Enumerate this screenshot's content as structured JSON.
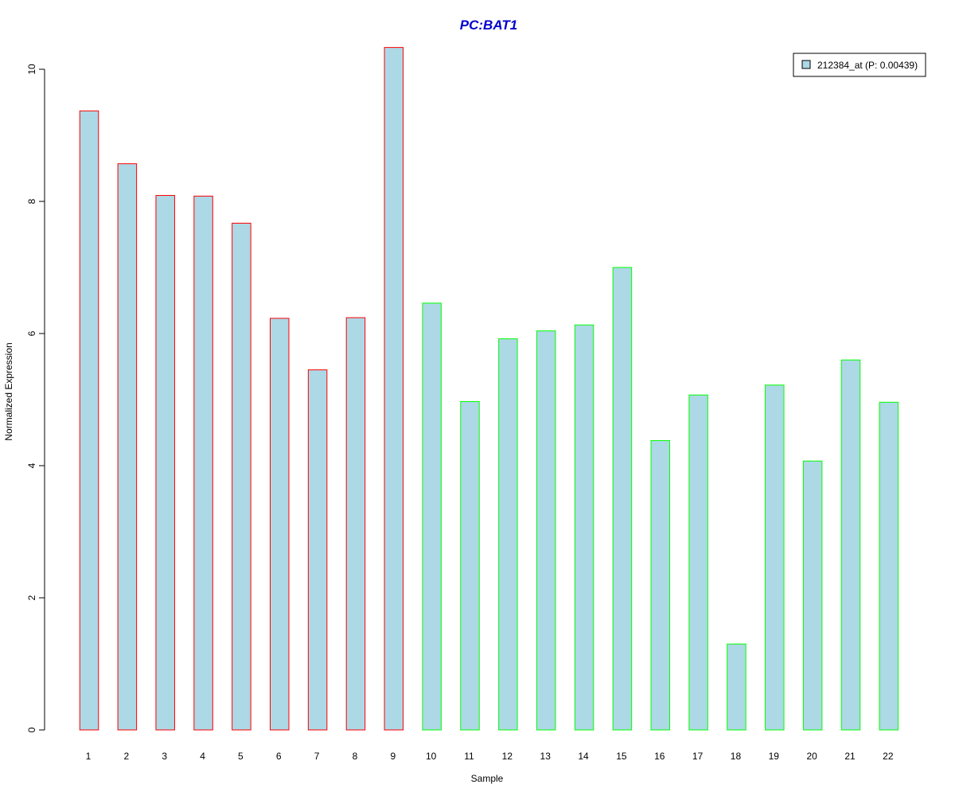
{
  "colors": {
    "bar_fill": "#add8e6",
    "group1_border": "#ff0000",
    "group2_border": "#00ff00",
    "title": "#0000cd",
    "axis": "#000000"
  },
  "chart_data": {
    "type": "bar",
    "title": "PC:BAT1",
    "xlabel": "Sample",
    "ylabel": "Normalized Expression",
    "ylim": [
      0,
      10.5
    ],
    "yticks": [
      0,
      2,
      4,
      6,
      8,
      10
    ],
    "grid": false,
    "legend_position": "top-right",
    "categories": [
      "1",
      "2",
      "3",
      "4",
      "5",
      "6",
      "7",
      "8",
      "9",
      "10",
      "11",
      "12",
      "13",
      "14",
      "15",
      "16",
      "17",
      "18",
      "19",
      "20",
      "21",
      "22"
    ],
    "series": [
      {
        "name": "212384_at (P: 0.00439)",
        "values": [
          9.37,
          8.57,
          8.09,
          8.08,
          7.67,
          6.23,
          5.45,
          6.24,
          10.33,
          6.46,
          4.97,
          5.92,
          6.04,
          6.13,
          7.0,
          4.38,
          5.07,
          1.3,
          5.22,
          4.07,
          5.6,
          4.96
        ],
        "border_groups": [
          1,
          1,
          1,
          1,
          1,
          1,
          1,
          1,
          1,
          2,
          2,
          2,
          2,
          2,
          2,
          2,
          2,
          2,
          2,
          2,
          2,
          2
        ]
      }
    ]
  }
}
